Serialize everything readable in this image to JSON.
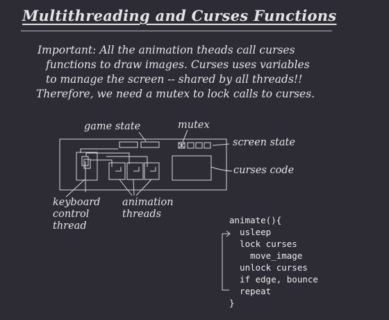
{
  "title": "Multithreading and Curses Functions",
  "intro_lines": [
    "Important: All the animation theads call curses",
    "functions to draw images.  Curses uses variables",
    "to manage the screen -- shared by all threads!!",
    "Therefore, we need a mutex to lock calls to curses."
  ],
  "diagram": {
    "labels": {
      "game_state": "game state",
      "mutex": "mutex",
      "screen_state": "screen state",
      "curses_code": "curses code",
      "keyboard_thread": [
        "keyboard",
        "control",
        "thread"
      ],
      "animation_threads": [
        "animation",
        "threads"
      ]
    }
  },
  "code": {
    "lines": [
      "animate(){",
      "  usleep",
      "  lock curses",
      "    move_image",
      "  unlock curses",
      "  if edge, bounce",
      "  repeat",
      "}"
    ]
  },
  "colors": {
    "background": "#2d2c34",
    "ink": "#e4e4e4"
  }
}
